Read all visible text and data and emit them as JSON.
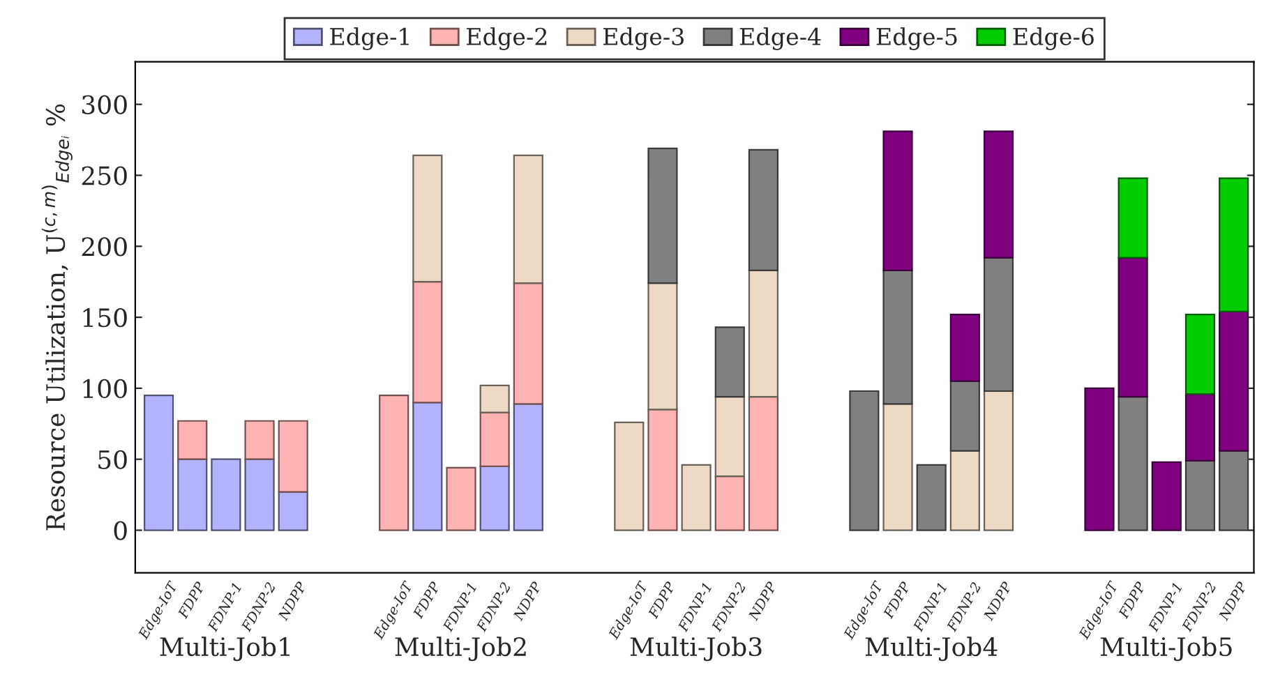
{
  "chart_data": {
    "type": "bar",
    "stacked": true,
    "ylabel": "Resource Utilization, U$^{(c,m)}$$_{Edgeᵢ}$ %",
    "categories": [
      "Edge-IoT",
      "FDPP",
      "FDNP-1",
      "FDNP-2",
      "NDPP",
      null,
      null,
      "Edge-IoT",
      "FDPP",
      "FDNP-1",
      "FDNP-2",
      "NDPP",
      null,
      null,
      "Edge-IoT",
      "FDPP",
      "FDNP-1",
      "FDNP-2",
      "NDPP",
      null,
      null,
      "Edge-IoT",
      "FDPP",
      "FDNP-1",
      "FDNP-2",
      "NDPP",
      null,
      null,
      "Edge-IoT",
      "FDPP",
      "FDNP-1",
      "FDNP-2",
      "NDPP"
    ],
    "series": [
      {
        "name": "Edge-1",
        "color": "#b3b3ff",
        "values": [
          95,
          50,
          50,
          50,
          27,
          null,
          null,
          null,
          90,
          null,
          45,
          89,
          null,
          null,
          null,
          null,
          null,
          null,
          null,
          null,
          null,
          null,
          null,
          null,
          null,
          null,
          null,
          null,
          null,
          null,
          null,
          null,
          null
        ]
      },
      {
        "name": "Edge-2",
        "color": "#ffb3b3",
        "values": [
          null,
          27,
          null,
          27,
          50,
          null,
          null,
          95,
          85,
          44,
          38,
          85,
          null,
          null,
          null,
          85,
          null,
          38,
          94,
          null,
          null,
          null,
          null,
          null,
          null,
          null,
          null,
          null,
          null,
          null,
          null,
          null,
          null
        ]
      },
      {
        "name": "Edge-3",
        "color": "#ecd9c6",
        "values": [
          null,
          null,
          null,
          null,
          null,
          null,
          null,
          null,
          89,
          null,
          19,
          90,
          null,
          null,
          76,
          89,
          46,
          56,
          89,
          null,
          null,
          null,
          89,
          null,
          56,
          98,
          null,
          null,
          null,
          null,
          null,
          null,
          null
        ]
      },
      {
        "name": "Edge-4",
        "color": "#808080",
        "values": [
          null,
          null,
          null,
          null,
          null,
          null,
          null,
          null,
          null,
          null,
          null,
          null,
          null,
          null,
          null,
          95,
          null,
          49,
          85,
          null,
          null,
          98,
          94,
          46,
          49,
          94,
          null,
          null,
          null,
          94,
          null,
          49,
          56
        ]
      },
      {
        "name": "Edge-5",
        "color": "#800080",
        "values": [
          null,
          null,
          null,
          null,
          null,
          null,
          null,
          null,
          null,
          null,
          null,
          null,
          null,
          null,
          null,
          null,
          null,
          null,
          null,
          null,
          null,
          null,
          98,
          null,
          47,
          89,
          null,
          null,
          100,
          98,
          48,
          47,
          98
        ]
      },
      {
        "name": "Edge-6",
        "color": "#00cc00",
        "values": [
          null,
          null,
          null,
          null,
          null,
          null,
          null,
          null,
          null,
          null,
          null,
          null,
          null,
          null,
          null,
          null,
          null,
          null,
          null,
          null,
          null,
          null,
          null,
          null,
          null,
          null,
          null,
          null,
          null,
          56,
          null,
          56,
          94
        ]
      }
    ],
    "ylim": [
      -30,
      330
    ],
    "yticks": [
      0,
      50,
      100,
      150,
      200,
      250,
      300
    ],
    "grid": false,
    "legend": "top",
    "annotations": [
      "Multi-Job1",
      "Multi-Job2",
      "Multi-Job3",
      "Multi-Job4",
      "Multi-Job5"
    ]
  }
}
